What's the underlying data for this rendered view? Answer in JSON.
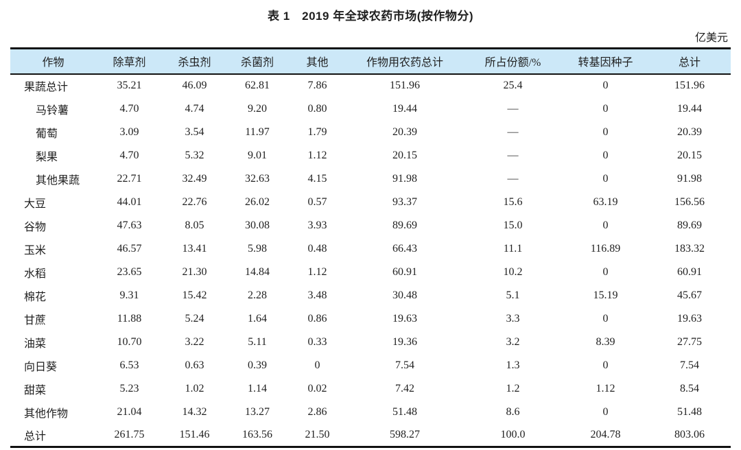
{
  "title": "表 1　2019 年全球农药市场(按作物分)",
  "unit": "亿美元",
  "colors": {
    "header_bg": "#cce8f8",
    "rule": "#111111",
    "text": "#1f1f1f"
  },
  "table": {
    "columns": [
      "作物",
      "除草剂",
      "杀虫剂",
      "杀菌剂",
      "其他",
      "作物用农药总计",
      "所占份额/%",
      "转基因种子",
      "总计"
    ],
    "rows": [
      {
        "crop": "果蔬总计",
        "indent": false,
        "values": [
          "35.21",
          "46.09",
          "62.81",
          "7.86",
          "151.96",
          "25.4",
          "0",
          "151.96"
        ]
      },
      {
        "crop": "马铃薯",
        "indent": true,
        "values": [
          "4.70",
          "4.74",
          "9.20",
          "0.80",
          "19.44",
          "—",
          "0",
          "19.44"
        ]
      },
      {
        "crop": "葡萄",
        "indent": true,
        "values": [
          "3.09",
          "3.54",
          "11.97",
          "1.79",
          "20.39",
          "—",
          "0",
          "20.39"
        ]
      },
      {
        "crop": "梨果",
        "indent": true,
        "values": [
          "4.70",
          "5.32",
          "9.01",
          "1.12",
          "20.15",
          "—",
          "0",
          "20.15"
        ]
      },
      {
        "crop": "其他果蔬",
        "indent": true,
        "values": [
          "22.71",
          "32.49",
          "32.63",
          "4.15",
          "91.98",
          "—",
          "0",
          "91.98"
        ]
      },
      {
        "crop": "大豆",
        "indent": false,
        "values": [
          "44.01",
          "22.76",
          "26.02",
          "0.57",
          "93.37",
          "15.6",
          "63.19",
          "156.56"
        ]
      },
      {
        "crop": "谷物",
        "indent": false,
        "values": [
          "47.63",
          "8.05",
          "30.08",
          "3.93",
          "89.69",
          "15.0",
          "0",
          "89.69"
        ]
      },
      {
        "crop": "玉米",
        "indent": false,
        "values": [
          "46.57",
          "13.41",
          "5.98",
          "0.48",
          "66.43",
          "11.1",
          "116.89",
          "183.32"
        ]
      },
      {
        "crop": "水稻",
        "indent": false,
        "values": [
          "23.65",
          "21.30",
          "14.84",
          "1.12",
          "60.91",
          "10.2",
          "0",
          "60.91"
        ]
      },
      {
        "crop": "棉花",
        "indent": false,
        "values": [
          "9.31",
          "15.42",
          "2.28",
          "3.48",
          "30.48",
          "5.1",
          "15.19",
          "45.67"
        ]
      },
      {
        "crop": "甘蔗",
        "indent": false,
        "values": [
          "11.88",
          "5.24",
          "1.64",
          "0.86",
          "19.63",
          "3.3",
          "0",
          "19.63"
        ]
      },
      {
        "crop": "油菜",
        "indent": false,
        "values": [
          "10.70",
          "3.22",
          "5.11",
          "0.33",
          "19.36",
          "3.2",
          "8.39",
          "27.75"
        ]
      },
      {
        "crop": "向日葵",
        "indent": false,
        "values": [
          "6.53",
          "0.63",
          "0.39",
          "0",
          "7.54",
          "1.3",
          "0",
          "7.54"
        ]
      },
      {
        "crop": "甜菜",
        "indent": false,
        "values": [
          "5.23",
          "1.02",
          "1.14",
          "0.02",
          "7.42",
          "1.2",
          "1.12",
          "8.54"
        ]
      },
      {
        "crop": "其他作物",
        "indent": false,
        "values": [
          "21.04",
          "14.32",
          "13.27",
          "2.86",
          "51.48",
          "8.6",
          "0",
          "51.48"
        ]
      },
      {
        "crop": "总计",
        "indent": false,
        "values": [
          "261.75",
          "151.46",
          "163.56",
          "21.50",
          "598.27",
          "100.0",
          "204.78",
          "803.06"
        ]
      }
    ]
  }
}
